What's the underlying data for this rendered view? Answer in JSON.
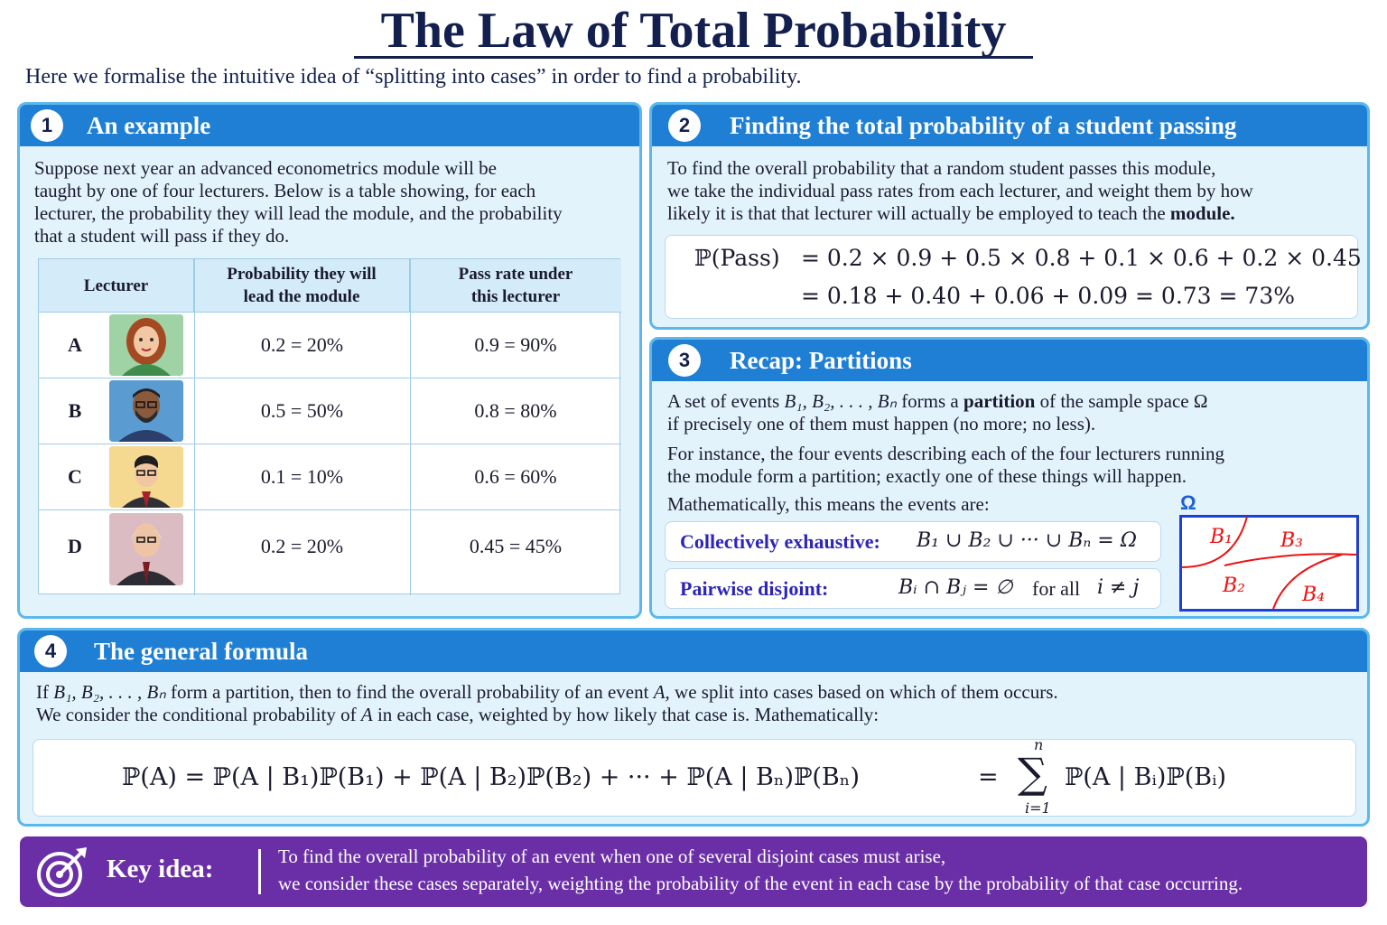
{
  "title": "The Law of Total Probability",
  "subtitle": "Here we formalise the intuitive idea of “splitting into cases” in order to find a probability.",
  "panel1": {
    "number": "1",
    "heading": "An example",
    "text": [
      "Suppose next year an advanced econometrics module will be",
      "taught by one of four lecturers. Below is a table showing, for each",
      "lecturer, the probability they will lead the module, and the probability",
      "that a student will pass if they do."
    ],
    "table": {
      "headers": [
        "Lecturer",
        "Probability they will lead the module",
        "Pass rate under this lecturer"
      ],
      "rows": [
        {
          "lecturer": "A",
          "prob": "0.2 = 20%",
          "pass": "0.9 = 90%"
        },
        {
          "lecturer": "B",
          "prob": "0.5 = 50%",
          "pass": "0.8 = 80%"
        },
        {
          "lecturer": "C",
          "prob": "0.1 = 10%",
          "pass": "0.6 = 60%"
        },
        {
          "lecturer": "D",
          "prob": "0.2 = 20%",
          "pass": "0.45 = 45%"
        }
      ]
    }
  },
  "panel2": {
    "number": "2",
    "heading": "Finding the total probability of a student passing",
    "text": [
      "To find the overall probability that a random student passes this module,",
      "we take the individual pass rates from each lecturer, and weight them by how",
      "likely it is that that lecturer will actually be employed to teach the"
    ],
    "text_bold": "module.",
    "eq_lhs": "ℙ(Pass)",
    "eq_line1": "= 0.2 × 0.9 + 0.5 × 0.8 + 0.1 × 0.6 + 0.2 × 0.45",
    "eq_line2": "= 0.18 + 0.40 + 0.06 + 0.09 = 0.73 = 73%"
  },
  "panel3": {
    "number": "3",
    "heading": "Recap: Partitions",
    "p1_pre": "A set of events",
    "p1_events": "B₁, B₂, . . . , Bₙ",
    "p1_mid": "forms a",
    "p1_bold": "partition",
    "p1_post": "of the sample space Ω",
    "p1_line2": "if precisely one of them must happen (no more; no less).",
    "p2": [
      "For instance, the four events describing each of the four lecturers running",
      "the module form a partition; exactly one of these things will happen."
    ],
    "p3": "Mathematically, this means the events are:",
    "exhaustive_label": "Collectively exhaustive:",
    "exhaustive_eq": "B₁ ∪ B₂ ∪ ··· ∪ Bₙ = Ω",
    "disjoint_label": "Pairwise disjoint:",
    "disjoint_eq": "Bᵢ ∩ Bⱼ = ∅",
    "disjoint_post": "for all",
    "disjoint_cond": "i ≠ j",
    "diagram": {
      "omega": "Ω",
      "regions": [
        "B₁",
        "B₃",
        "B₂",
        "B₄"
      ]
    }
  },
  "panel4": {
    "number": "4",
    "heading": "The general formula",
    "line1_pre": "If",
    "line1_events": "B₁, B₂, . . . , Bₙ",
    "line1_mid": "form a partition, then to find the overall probability of an event",
    "line1_A": "A,",
    "line1_post": "we split into cases based on which of them occurs.",
    "line2_pre": "We consider the conditional probability of",
    "line2_A": "A",
    "line2_post": "in each case, weighted by how likely that case is. Mathematically:",
    "formula": "ℙ(A) = ℙ(A | B₁)ℙ(B₁) + ℙ(A | B₂)ℙ(B₂) + ··· + ℙ(A | Bₙ)ℙ(Bₙ)",
    "sum_eq": "=",
    "sum_top": "n",
    "sum_symbol": "∑",
    "sum_bottom": "i=1",
    "sum_term": "ℙ(A | Bᵢ)ℙ(Bᵢ)"
  },
  "key": {
    "label": "Key idea:",
    "line1": "To find the overall probability of an event when one of several disjoint cases must arise,",
    "line2": "we consider these cases separately, weighting the probability of the event in each case by the probability of that case occurring."
  }
}
